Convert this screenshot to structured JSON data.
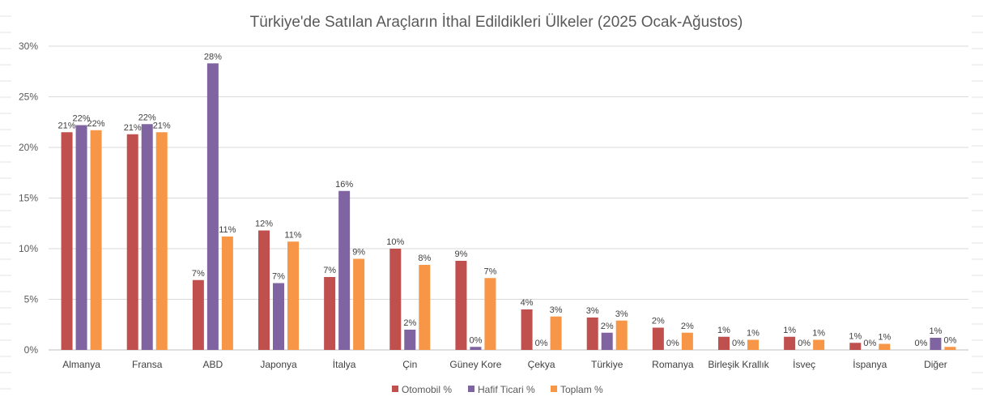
{
  "chart_data": {
    "type": "bar",
    "title": "Türkiye'de Satılan Araçların İthal Edildikleri Ülkeler (2025 Ocak-Ağustos)",
    "xlabel": "",
    "ylabel": "",
    "ylim": [
      0,
      30
    ],
    "yticks": [
      "0%",
      "5%",
      "10%",
      "15%",
      "20%",
      "25%",
      "30%"
    ],
    "grid": true,
    "legend_position": "bottom",
    "categories": [
      "Almanya",
      "Fransa",
      "ABD",
      "Japonya",
      "İtalya",
      "Çin",
      "Güney Kore",
      "Çekya",
      "Türkiye",
      "Romanya",
      "Birleşik Krallık",
      "İsveç",
      "İspanya",
      "Diğer"
    ],
    "series": [
      {
        "name": "Otomobil %",
        "color": "#c0504d",
        "values": [
          21.5,
          21.3,
          6.9,
          11.8,
          7.2,
          10.0,
          8.8,
          4.0,
          3.2,
          2.2,
          1.3,
          1.3,
          0.7,
          0.0
        ],
        "labels": [
          "21%",
          "21%",
          "7%",
          "12%",
          "7%",
          "10%",
          "9%",
          "4%",
          "3%",
          "2%",
          "1%",
          "1%",
          "1%",
          "0%"
        ]
      },
      {
        "name": "Hafif Ticari %",
        "color": "#8064a2",
        "values": [
          22.2,
          22.3,
          28.3,
          6.6,
          15.7,
          2.0,
          0.3,
          0.0,
          1.7,
          0.0,
          0.0,
          0.0,
          0.0,
          1.2
        ],
        "labels": [
          "22%",
          "22%",
          "28%",
          "7%",
          "16%",
          "2%",
          "0%",
          "0%",
          "2%",
          "0%",
          "0%",
          "0%",
          "0%",
          "1%"
        ]
      },
      {
        "name": "Toplam %",
        "color": "#f79646",
        "values": [
          21.7,
          21.5,
          11.2,
          10.7,
          9.0,
          8.4,
          7.1,
          3.3,
          2.9,
          1.7,
          1.0,
          1.0,
          0.6,
          0.3
        ],
        "labels": [
          "22%",
          "21%",
          "11%",
          "11%",
          "9%",
          "8%",
          "7%",
          "3%",
          "3%",
          "2%",
          "1%",
          "1%",
          "1%",
          "0%"
        ]
      }
    ]
  }
}
